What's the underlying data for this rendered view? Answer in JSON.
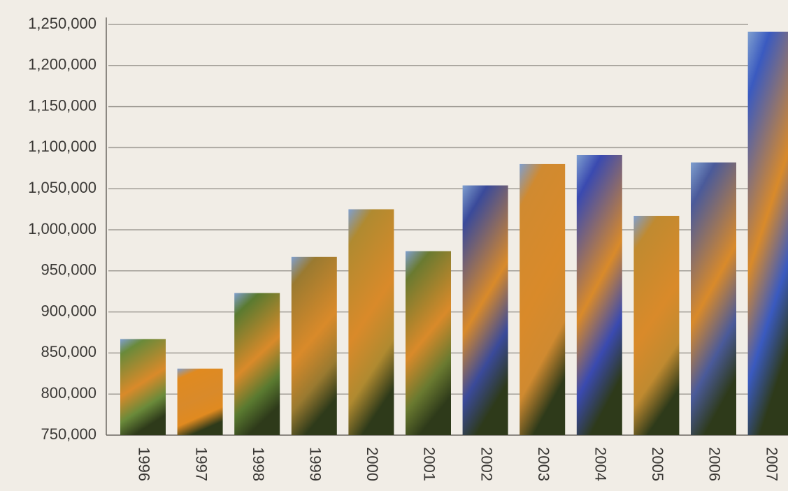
{
  "chart_data": {
    "type": "bar",
    "categories": [
      "1996",
      "1997",
      "1998",
      "1999",
      "2000",
      "2001",
      "2002",
      "2003",
      "2004",
      "2005",
      "2006",
      "2007"
    ],
    "values": [
      867000,
      831000,
      923000,
      967000,
      1025000,
      974000,
      1054000,
      1080000,
      1091000,
      1017000,
      1082000,
      1241000
    ],
    "colors": [
      "#6a8a3a",
      "#e08a20",
      "#5a7a30",
      "#9a7a30",
      "#b08a30",
      "#6a7a30",
      "#3a4a9a",
      "#d08a30",
      "#3a4ab0",
      "#c08a30",
      "#4a5a9a",
      "#3a5ac0"
    ],
    "ylim": [
      750000,
      1250000
    ],
    "yticks": [
      {
        "value": 750000,
        "label": "750,000"
      },
      {
        "value": 800000,
        "label": "800,000"
      },
      {
        "value": 850000,
        "label": "850,000"
      },
      {
        "value": 900000,
        "label": "900,000"
      },
      {
        "value": 950000,
        "label": "950,000"
      },
      {
        "value": 1000000,
        "label": "1,000,000"
      },
      {
        "value": 1050000,
        "label": "1,050,000"
      },
      {
        "value": 1100000,
        "label": "1,100,000"
      },
      {
        "value": 1150000,
        "label": "1,150,000"
      },
      {
        "value": 1200000,
        "label": "1,200,000"
      },
      {
        "value": 1250000,
        "label": "1,250,000"
      }
    ],
    "grid": true
  }
}
